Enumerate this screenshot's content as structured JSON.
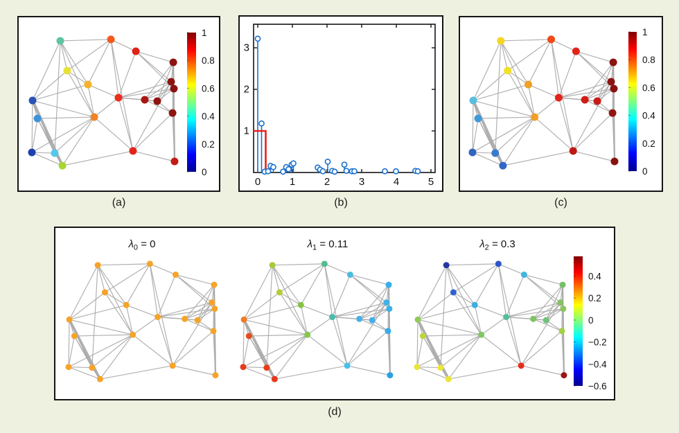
{
  "figure": {
    "background_color": "#eef1e0",
    "panel_background": "#ffffff",
    "panel_border_color": "#141414",
    "jet_colormap": [
      "#00008f",
      "#0000ff",
      "#00ffff",
      "#ffff00",
      "#ff0000",
      "#800000"
    ]
  },
  "captions": {
    "a": "(a)",
    "b": "(b)",
    "c": "(c)",
    "d": "(d)"
  },
  "graph": {
    "edge_color": "#a9a9a9",
    "default_edge_width": 1.2,
    "edge_weights": {
      "9-19": 3.8,
      "4-20": 2.2
    },
    "nodes": [
      [
        0.198,
        0.016
      ],
      [
        0.551,
        0.005
      ],
      [
        0.725,
        0.098
      ],
      [
        0.986,
        0.185
      ],
      [
        0.246,
        0.25
      ],
      [
        0.971,
        0.337
      ],
      [
        0.99,
        0.391
      ],
      [
        0.391,
        0.359
      ],
      [
        0.005,
        0.484
      ],
      [
        0.604,
        0.462
      ],
      [
        0.787,
        0.478
      ],
      [
        0.874,
        0.489
      ],
      [
        0.981,
        0.582
      ],
      [
        0.039,
        0.625
      ],
      [
        0.435,
        0.614
      ],
      [
        0.0,
        0.891
      ],
      [
        0.159,
        0.897
      ],
      [
        0.705,
        0.88
      ],
      [
        0.213,
        0.995
      ],
      [
        0.995,
        0.962
      ]
    ],
    "edges": [
      [
        1,
        2
      ],
      [
        1,
        5
      ],
      [
        1,
        8
      ],
      [
        1,
        9
      ],
      [
        1,
        15
      ],
      [
        1,
        17
      ],
      [
        2,
        3
      ],
      [
        2,
        5
      ],
      [
        2,
        8
      ],
      [
        2,
        10
      ],
      [
        2,
        18
      ],
      [
        3,
        4
      ],
      [
        3,
        6
      ],
      [
        3,
        7
      ],
      [
        3,
        10
      ],
      [
        4,
        6
      ],
      [
        4,
        7
      ],
      [
        4,
        11
      ],
      [
        4,
        12
      ],
      [
        4,
        13
      ],
      [
        4,
        20
      ],
      [
        5,
        8
      ],
      [
        5,
        9
      ],
      [
        5,
        15
      ],
      [
        6,
        7
      ],
      [
        6,
        10
      ],
      [
        6,
        11
      ],
      [
        6,
        12
      ],
      [
        6,
        18
      ],
      [
        7,
        10
      ],
      [
        7,
        11
      ],
      [
        7,
        12
      ],
      [
        7,
        20
      ],
      [
        8,
        9
      ],
      [
        8,
        10
      ],
      [
        8,
        15
      ],
      [
        9,
        14
      ],
      [
        9,
        15
      ],
      [
        9,
        16
      ],
      [
        9,
        17
      ],
      [
        9,
        19
      ],
      [
        10,
        11
      ],
      [
        10,
        12
      ],
      [
        10,
        15
      ],
      [
        10,
        18
      ],
      [
        11,
        12
      ],
      [
        11,
        13
      ],
      [
        12,
        13
      ],
      [
        13,
        18
      ],
      [
        13,
        20
      ],
      [
        14,
        15
      ],
      [
        14,
        16
      ],
      [
        14,
        17
      ],
      [
        14,
        19
      ],
      [
        15,
        16
      ],
      [
        15,
        17
      ],
      [
        15,
        18
      ],
      [
        15,
        19
      ],
      [
        16,
        17
      ],
      [
        16,
        19
      ],
      [
        17,
        19
      ],
      [
        18,
        19
      ],
      [
        18,
        20
      ]
    ]
  },
  "chart_data": [
    {
      "id": "a",
      "type": "scatter",
      "subtype": "node_link_graph_signal",
      "title": "(a)",
      "node_colors": [
        "#5ec4a2",
        "#f4581c",
        "#e02318",
        "#8c1511",
        "#e6e235",
        "#8c1511",
        "#871310",
        "#f5b32b",
        "#2b53b4",
        "#ea2d1c",
        "#a81713",
        "#8f1411",
        "#8c1411",
        "#3e93d8",
        "#f08326",
        "#2040ae",
        "#54c8ec",
        "#e32519",
        "#a7d632",
        "#c11b15"
      ],
      "colorbar": {
        "colormap": "jet",
        "range": [
          0,
          1
        ],
        "tick_labels": [
          "1",
          "0.8",
          "0.6",
          "0.4",
          "0.2",
          "0"
        ],
        "tick_pos_from_top": [
          0,
          0.2,
          0.4,
          0.6,
          0.8,
          1
        ],
        "position": "right"
      }
    },
    {
      "id": "b",
      "type": "scatter",
      "subtype": "stem_spectrum",
      "title": "(b)",
      "x": [
        0,
        0.11,
        0.2,
        0.3,
        0.37,
        0.45,
        0.73,
        0.82,
        0.89,
        0.98,
        1.03,
        1.73,
        1.8,
        1.88,
        2.02,
        2.15,
        2.22,
        2.5,
        2.56,
        2.72,
        2.79,
        3.67,
        3.99,
        4.55,
        4.62
      ],
      "y": [
        3.22,
        1.18,
        0.02,
        0.03,
        0.16,
        0.13,
        0.02,
        0.13,
        0.08,
        0.19,
        0.22,
        0.12,
        0.07,
        0.03,
        0.26,
        0.04,
        0.02,
        0.19,
        0.04,
        0.03,
        0.03,
        0.03,
        0.03,
        0.04,
        0.03
      ],
      "xlim": [
        0,
        5
      ],
      "ylim": [
        0,
        3.53
      ],
      "xtick_labels": [
        "0",
        "1",
        "2",
        "3",
        "4",
        "5"
      ],
      "xtick_values": [
        0,
        1,
        2,
        3,
        4,
        5
      ],
      "ytick_labels": [
        "1",
        "2",
        "3"
      ],
      "ytick_values": [
        1,
        2,
        3
      ],
      "stem_color": "#1a70cc",
      "marker_fill": "#ffffff",
      "filter": {
        "shape": "step",
        "height": 1,
        "cutoff": 0.23,
        "color": "#ed1f18"
      },
      "grid": false
    },
    {
      "id": "c",
      "type": "scatter",
      "subtype": "node_link_graph_signal",
      "title": "(c)",
      "node_colors": [
        "#f5d622",
        "#f14a18",
        "#e22418",
        "#8c1411",
        "#f2e028",
        "#8c1411",
        "#871310",
        "#f0a122",
        "#58bede",
        "#e22418",
        "#d21e16",
        "#c61c15",
        "#911511",
        "#3f99d8",
        "#f0a027",
        "#3265c0",
        "#3a7acc",
        "#bd1813",
        "#3168c6",
        "#871310"
      ],
      "colorbar": {
        "colormap": "jet",
        "range": [
          0,
          1
        ],
        "tick_labels": [
          "1",
          "0.8",
          "0.6",
          "0.4",
          "0.2",
          "0"
        ],
        "tick_pos_from_top": [
          0,
          0.2,
          0.4,
          0.6,
          0.8,
          1
        ],
        "position": "right"
      }
    },
    {
      "id": "d",
      "type": "scatter",
      "subtype": "laplacian_eigenvector_triptych",
      "title": "(d)",
      "subplots": [
        {
          "title_symbol": "λ",
          "title_subscript": "0",
          "title_value": "0",
          "title_text": "λ0 = 0",
          "node_colors": [
            "#f5a42a",
            "#f5a42a",
            "#f5a42a",
            "#f5a42a",
            "#f5a42a",
            "#f5a42a",
            "#f5a42a",
            "#f5a42a",
            "#f5a42a",
            "#f5a42a",
            "#f5a42a",
            "#f5a42a",
            "#f5a42a",
            "#f5a42a",
            "#f5a42a",
            "#f5a42a",
            "#f5a42a",
            "#f5a42a",
            "#f5a42a",
            "#f5a42a"
          ]
        },
        {
          "title_symbol": "λ",
          "title_subscript": "1",
          "title_value": "0.11",
          "title_text": "λ1 = 0.11",
          "node_colors": [
            "#a6ca3b",
            "#52bd8e",
            "#4cbbe2",
            "#38aeea",
            "#b4cd33",
            "#40b2e8",
            "#3cb0ea",
            "#85c446",
            "#f07d28",
            "#4cb9ab",
            "#46b2e6",
            "#44b0e8",
            "#38acea",
            "#e84a1c",
            "#83c74d",
            "#e83a1c",
            "#e83d1a",
            "#48c0ea",
            "#e6371a",
            "#28a0e2"
          ]
        },
        {
          "title_symbol": "λ",
          "title_subscript": "2",
          "title_value": "0.3",
          "title_text": "λ2 = 0.3",
          "node_colors": [
            "#22389f",
            "#2d55c8",
            "#42b4e2",
            "#74c06a",
            "#2e62d0",
            "#84c263",
            "#8cc45e",
            "#3ab0e2",
            "#92c957",
            "#56bd9a",
            "#7dc464",
            "#72c277",
            "#a6cf45",
            "#bad83a",
            "#7dc863",
            "#e9e438",
            "#ece73a",
            "#e62d1a",
            "#e9e53a",
            "#9c1714"
          ]
        }
      ],
      "colorbar": {
        "colormap": "jet",
        "range": [
          -0.6,
          0.58
        ],
        "tick_labels": [
          "0.4",
          "0.2",
          "0",
          "−0.2",
          "−0.4",
          "−0.6"
        ],
        "tick_pos_from_top": [
          0.153,
          0.322,
          0.492,
          0.661,
          0.831,
          1.0
        ],
        "position": "right"
      }
    }
  ]
}
